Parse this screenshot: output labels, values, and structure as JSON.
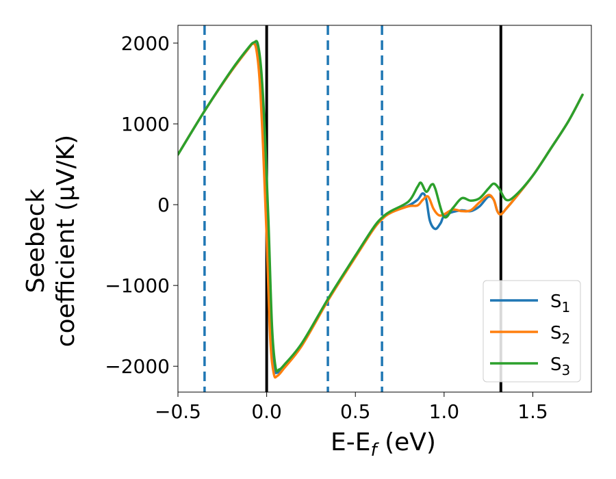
{
  "chart_data": {
    "type": "line",
    "xlabel": "E-E",
    "xlabel_sub": "f",
    "xlabel_unit": " (eV)",
    "ylabel_line1": "Seebeck",
    "ylabel_line2": "coefficient  (μV/K)",
    "xlim": [
      -0.5,
      1.83
    ],
    "ylim": [
      -2320,
      2220
    ],
    "xticks": [
      -0.5,
      0.0,
      0.5,
      1.0,
      1.5
    ],
    "xtick_labels": [
      "−0.5",
      "0.0",
      "0.5",
      "1.0",
      "1.5"
    ],
    "yticks": [
      2000,
      1000,
      0,
      -1000,
      -2000
    ],
    "ytick_labels": [
      "2000",
      "1000",
      "0",
      "−1000",
      "−2000"
    ],
    "grid": false,
    "legend_position": "lower-right",
    "vlines": [
      {
        "x": -0.35,
        "style": "dashed",
        "color": "#1f77b4"
      },
      {
        "x": 0.0,
        "style": "solid",
        "color": "#000000"
      },
      {
        "x": 0.345,
        "style": "dashed",
        "color": "#1f77b4"
      },
      {
        "x": 0.65,
        "style": "dashed",
        "color": "#1f77b4"
      },
      {
        "x": 1.32,
        "style": "solid",
        "color": "#000000"
      }
    ],
    "series": [
      {
        "name": "S",
        "sub": "1",
        "color": "#1f77b4",
        "points": [
          [
            -0.5,
            620
          ],
          [
            -0.35,
            1160
          ],
          [
            -0.2,
            1650
          ],
          [
            -0.1,
            1940
          ],
          [
            -0.08,
            1995
          ],
          [
            -0.06,
            1960
          ],
          [
            -0.04,
            1600
          ],
          [
            -0.02,
            800
          ],
          [
            0.0,
            -300
          ],
          [
            0.02,
            -1500
          ],
          [
            0.04,
            -2010
          ],
          [
            0.06,
            -2080
          ],
          [
            0.1,
            -2000
          ],
          [
            0.2,
            -1720
          ],
          [
            0.35,
            -1160
          ],
          [
            0.5,
            -640
          ],
          [
            0.6,
            -300
          ],
          [
            0.65,
            -170
          ],
          [
            0.7,
            -90
          ],
          [
            0.8,
            -10
          ],
          [
            0.85,
            60
          ],
          [
            0.88,
            140
          ],
          [
            0.9,
            60
          ],
          [
            0.92,
            -200
          ],
          [
            0.95,
            -300
          ],
          [
            0.98,
            -230
          ],
          [
            1.0,
            -140
          ],
          [
            1.05,
            -90
          ],
          [
            1.1,
            -70
          ],
          [
            1.15,
            -80
          ],
          [
            1.2,
            -20
          ],
          [
            1.25,
            100
          ],
          [
            1.28,
            60
          ],
          [
            1.3,
            -80
          ],
          [
            1.32,
            -120
          ],
          [
            1.35,
            -50
          ],
          [
            1.4,
            80
          ],
          [
            1.5,
            360
          ],
          [
            1.6,
            690
          ],
          [
            1.7,
            1030
          ],
          [
            1.78,
            1360
          ]
        ]
      },
      {
        "name": "S",
        "sub": "2",
        "color": "#ff7f0e",
        "points": [
          [
            -0.5,
            620
          ],
          [
            -0.35,
            1160
          ],
          [
            -0.2,
            1650
          ],
          [
            -0.1,
            1940
          ],
          [
            -0.08,
            1990
          ],
          [
            -0.06,
            1940
          ],
          [
            -0.04,
            1550
          ],
          [
            -0.02,
            700
          ],
          [
            0.0,
            -400
          ],
          [
            0.02,
            -1650
          ],
          [
            0.04,
            -2090
          ],
          [
            0.06,
            -2120
          ],
          [
            0.1,
            -2020
          ],
          [
            0.2,
            -1740
          ],
          [
            0.35,
            -1170
          ],
          [
            0.5,
            -650
          ],
          [
            0.6,
            -310
          ],
          [
            0.65,
            -180
          ],
          [
            0.7,
            -100
          ],
          [
            0.8,
            -20
          ],
          [
            0.85,
            -10
          ],
          [
            0.88,
            60
          ],
          [
            0.91,
            100
          ],
          [
            0.94,
            -50
          ],
          [
            0.97,
            -130
          ],
          [
            1.0,
            -120
          ],
          [
            1.05,
            -60
          ],
          [
            1.1,
            -80
          ],
          [
            1.15,
            -70
          ],
          [
            1.2,
            30
          ],
          [
            1.25,
            120
          ],
          [
            1.28,
            60
          ],
          [
            1.3,
            -80
          ],
          [
            1.32,
            -120
          ],
          [
            1.35,
            -50
          ],
          [
            1.4,
            80
          ],
          [
            1.5,
            360
          ],
          [
            1.6,
            690
          ],
          [
            1.7,
            1030
          ],
          [
            1.78,
            1360
          ]
        ]
      },
      {
        "name": "S",
        "sub": "3",
        "color": "#2ca02c",
        "points": [
          [
            -0.5,
            620
          ],
          [
            -0.35,
            1160
          ],
          [
            -0.2,
            1660
          ],
          [
            -0.1,
            1950
          ],
          [
            -0.07,
            2010
          ],
          [
            -0.05,
            1990
          ],
          [
            -0.03,
            1650
          ],
          [
            -0.01,
            900
          ],
          [
            0.01,
            -200
          ],
          [
            0.03,
            -1500
          ],
          [
            0.05,
            -2010
          ],
          [
            0.07,
            -2040
          ],
          [
            0.1,
            -1980
          ],
          [
            0.2,
            -1710
          ],
          [
            0.35,
            -1150
          ],
          [
            0.5,
            -630
          ],
          [
            0.6,
            -290
          ],
          [
            0.65,
            -160
          ],
          [
            0.7,
            -80
          ],
          [
            0.8,
            40
          ],
          [
            0.85,
            220
          ],
          [
            0.87,
            270
          ],
          [
            0.9,
            160
          ],
          [
            0.93,
            250
          ],
          [
            0.95,
            200
          ],
          [
            1.0,
            -150
          ],
          [
            1.05,
            -40
          ],
          [
            1.1,
            80
          ],
          [
            1.15,
            50
          ],
          [
            1.2,
            80
          ],
          [
            1.25,
            200
          ],
          [
            1.28,
            260
          ],
          [
            1.31,
            200
          ],
          [
            1.35,
            60
          ],
          [
            1.4,
            110
          ],
          [
            1.5,
            360
          ],
          [
            1.6,
            690
          ],
          [
            1.7,
            1030
          ],
          [
            1.78,
            1360
          ]
        ]
      }
    ]
  }
}
